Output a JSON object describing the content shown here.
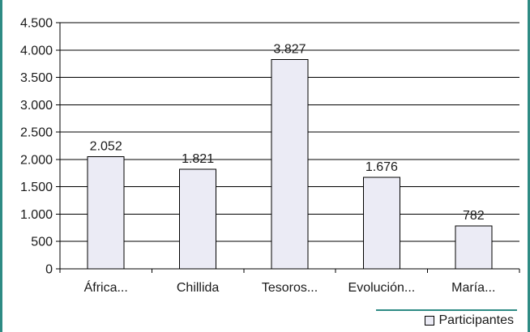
{
  "chart_data": {
    "type": "bar",
    "categories": [
      "África...",
      "Chillida",
      "Tesoros...",
      "Evolución...",
      "María..."
    ],
    "series": [
      {
        "name": "Participantes",
        "values": [
          2052,
          1821,
          3827,
          1676,
          782
        ],
        "value_labels": [
          "2.052",
          "1.821",
          "3.827",
          "1.676",
          "782"
        ]
      }
    ],
    "ylim": [
      0,
      4500
    ],
    "yticks": [
      0,
      500,
      1000,
      1500,
      2000,
      2500,
      3000,
      3500,
      4000,
      4500
    ],
    "ytick_labels": [
      "0",
      "500",
      "1.000",
      "1.500",
      "2.000",
      "2.500",
      "3.000",
      "3.500",
      "4.000",
      "4.500"
    ],
    "grid": true,
    "legend_position": "bottom-right",
    "title": "",
    "xlabel": "",
    "ylabel": ""
  },
  "colors": {
    "bar_fill": "#ebebf5",
    "bar_stroke": "#000000",
    "grid": "#000000",
    "frame_accent": "#2e8b84"
  },
  "legend": {
    "label": "Participantes"
  }
}
